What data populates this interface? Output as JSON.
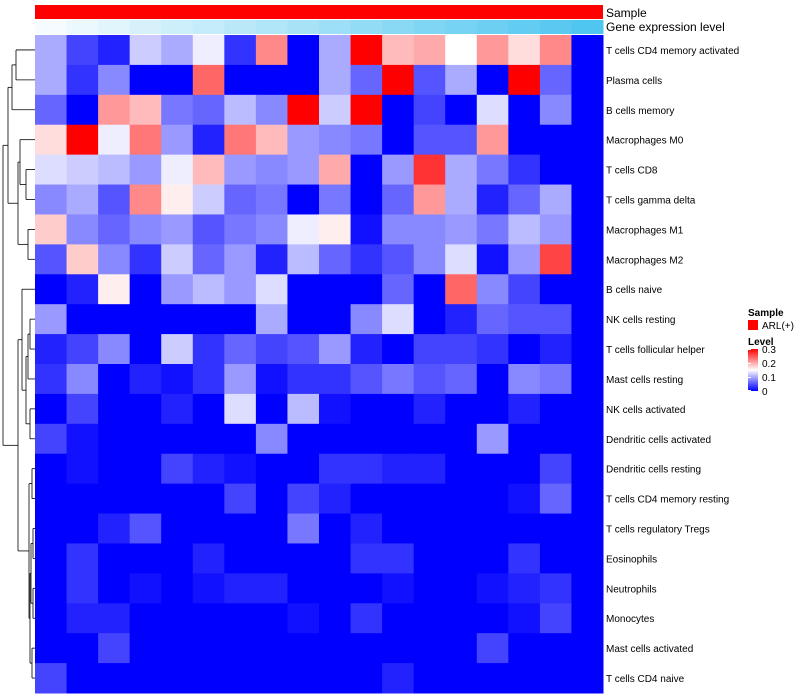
{
  "chart_data": {
    "type": "heatmap",
    "title": "",
    "xlabel": "",
    "ylabel": "",
    "annotation_tracks": [
      "Sample",
      "Gene expression level"
    ],
    "legend": {
      "sample_title": "Sample",
      "sample_entry": "ARL(+)",
      "sample_color": "#ff0000",
      "level_title": "Level",
      "level_ticks": [
        "0.3",
        "0.2",
        "0.1",
        "0"
      ],
      "level_range": [
        0,
        0.3
      ]
    },
    "palette": {
      "low": "#0000ff",
      "mid": "#ffffff",
      "high": "#ff0000",
      "annotation_low": "#f5fbfe",
      "annotation_high": "#4fc6f0"
    },
    "gene_expression_level": [
      0.0,
      0.06,
      0.12,
      0.18,
      0.24,
      0.29,
      0.35,
      0.41,
      0.47,
      0.53,
      0.59,
      0.65,
      0.71,
      0.76,
      0.82,
      0.88,
      0.94,
      1.0
    ],
    "rows": [
      "T cells CD4 memory activated",
      "Plasma cells",
      "B cells memory",
      "Macrophages M0",
      "T cells CD8",
      "T cells gamma delta",
      "Macrophages M1",
      "Macrophages M2",
      "B cells naive",
      "NK cells resting",
      "T cells follicular helper",
      "Mast cells resting",
      "NK cells activated",
      "Dendritic cells activated",
      "Dendritic cells resting",
      "T cells CD4 memory resting",
      "T cells regulatory  Tregs",
      "Eosinophils",
      "Neutrophils",
      "Monocytes",
      "Mast cells activated",
      "T cells CD4 naive"
    ],
    "values": [
      [
        0.1,
        0.04,
        0.02,
        0.12,
        0.1,
        0.14,
        0.03,
        0.22,
        0.0,
        0.1,
        0.3,
        0.19,
        0.2,
        0.15,
        0.21,
        0.17,
        0.22,
        0.0
      ],
      [
        0.1,
        0.03,
        0.08,
        0.0,
        0.0,
        0.24,
        0.0,
        0.0,
        0.0,
        0.1,
        0.06,
        0.3,
        0.05,
        0.1,
        0.0,
        0.3,
        0.06,
        0.0
      ],
      [
        0.06,
        0.0,
        0.21,
        0.19,
        0.07,
        0.06,
        0.11,
        0.08,
        0.3,
        0.12,
        0.3,
        0.0,
        0.04,
        0.0,
        0.13,
        0.0,
        0.08,
        0.0
      ],
      [
        0.17,
        0.3,
        0.14,
        0.23,
        0.09,
        0.02,
        0.23,
        0.19,
        0.09,
        0.08,
        0.07,
        0.0,
        0.05,
        0.05,
        0.21,
        0.0,
        0.0,
        0.0
      ],
      [
        0.13,
        0.12,
        0.11,
        0.09,
        0.14,
        0.19,
        0.09,
        0.08,
        0.09,
        0.2,
        0.0,
        0.09,
        0.27,
        0.1,
        0.07,
        0.03,
        0.0,
        0.0
      ],
      [
        0.08,
        0.1,
        0.05,
        0.22,
        0.16,
        0.12,
        0.06,
        0.07,
        0.0,
        0.07,
        0.0,
        0.06,
        0.21,
        0.1,
        0.02,
        0.06,
        0.1,
        0.0
      ],
      [
        0.18,
        0.08,
        0.06,
        0.08,
        0.09,
        0.05,
        0.07,
        0.08,
        0.14,
        0.16,
        0.01,
        0.08,
        0.08,
        0.09,
        0.07,
        0.11,
        0.09,
        0.0
      ],
      [
        0.05,
        0.18,
        0.08,
        0.03,
        0.12,
        0.06,
        0.09,
        0.02,
        0.11,
        0.06,
        0.03,
        0.05,
        0.08,
        0.13,
        0.01,
        0.09,
        0.26,
        0.0
      ],
      [
        0.0,
        0.02,
        0.16,
        0.0,
        0.09,
        0.11,
        0.09,
        0.13,
        0.0,
        0.0,
        0.0,
        0.06,
        0.0,
        0.24,
        0.08,
        0.04,
        0.0,
        0.0
      ],
      [
        0.09,
        0.0,
        0.0,
        0.0,
        0.0,
        0.0,
        0.0,
        0.1,
        0.0,
        0.0,
        0.08,
        0.13,
        0.0,
        0.02,
        0.06,
        0.05,
        0.05,
        0.0
      ],
      [
        0.02,
        0.04,
        0.08,
        0.0,
        0.12,
        0.03,
        0.06,
        0.04,
        0.05,
        0.09,
        0.02,
        0.0,
        0.04,
        0.04,
        0.03,
        0.0,
        0.02,
        0.0
      ],
      [
        0.03,
        0.08,
        0.0,
        0.02,
        0.01,
        0.03,
        0.09,
        0.01,
        0.03,
        0.03,
        0.05,
        0.07,
        0.05,
        0.06,
        0.0,
        0.08,
        0.07,
        0.0
      ],
      [
        0.0,
        0.04,
        0.0,
        0.0,
        0.02,
        0.0,
        0.13,
        0.0,
        0.11,
        0.01,
        0.0,
        0.0,
        0.02,
        0.0,
        0.0,
        0.02,
        0.0,
        0.0
      ],
      [
        0.04,
        0.01,
        0.0,
        0.0,
        0.0,
        0.0,
        0.0,
        0.08,
        0.0,
        0.0,
        0.0,
        0.0,
        0.0,
        0.0,
        0.09,
        0.0,
        0.0,
        0.0
      ],
      [
        0.0,
        0.01,
        0.0,
        0.0,
        0.04,
        0.02,
        0.01,
        0.0,
        0.0,
        0.03,
        0.03,
        0.02,
        0.02,
        0.0,
        0.0,
        0.0,
        0.04,
        0.0
      ],
      [
        0.0,
        0.0,
        0.0,
        0.0,
        0.0,
        0.0,
        0.04,
        0.0,
        0.04,
        0.02,
        0.0,
        0.0,
        0.0,
        0.0,
        0.0,
        0.01,
        0.06,
        0.0
      ],
      [
        0.0,
        0.0,
        0.02,
        0.05,
        0.0,
        0.0,
        0.0,
        0.0,
        0.07,
        0.0,
        0.02,
        0.0,
        0.0,
        0.0,
        0.0,
        0.0,
        0.0,
        0.0
      ],
      [
        0.0,
        0.03,
        0.0,
        0.0,
        0.0,
        0.02,
        0.0,
        0.0,
        0.0,
        0.0,
        0.03,
        0.03,
        0.0,
        0.0,
        0.0,
        0.03,
        0.0,
        0.0
      ],
      [
        0.0,
        0.03,
        0.0,
        0.01,
        0.0,
        0.01,
        0.02,
        0.02,
        0.0,
        0.0,
        0.0,
        0.01,
        0.0,
        0.0,
        0.01,
        0.02,
        0.03,
        0.0
      ],
      [
        0.0,
        0.02,
        0.02,
        0.0,
        0.0,
        0.0,
        0.0,
        0.0,
        0.01,
        0.0,
        0.03,
        0.0,
        0.0,
        0.0,
        0.0,
        0.01,
        0.04,
        0.0
      ],
      [
        0.0,
        0.0,
        0.04,
        0.0,
        0.0,
        0.0,
        0.0,
        0.0,
        0.0,
        0.0,
        0.0,
        0.0,
        0.0,
        0.0,
        0.04,
        0.0,
        0.0,
        0.0
      ],
      [
        0.04,
        0.0,
        0.0,
        0.0,
        0.0,
        0.0,
        0.0,
        0.0,
        0.0,
        0.0,
        0.0,
        0.02,
        0.0,
        0.0,
        0.0,
        0.0,
        0.0,
        0.0
      ]
    ]
  }
}
